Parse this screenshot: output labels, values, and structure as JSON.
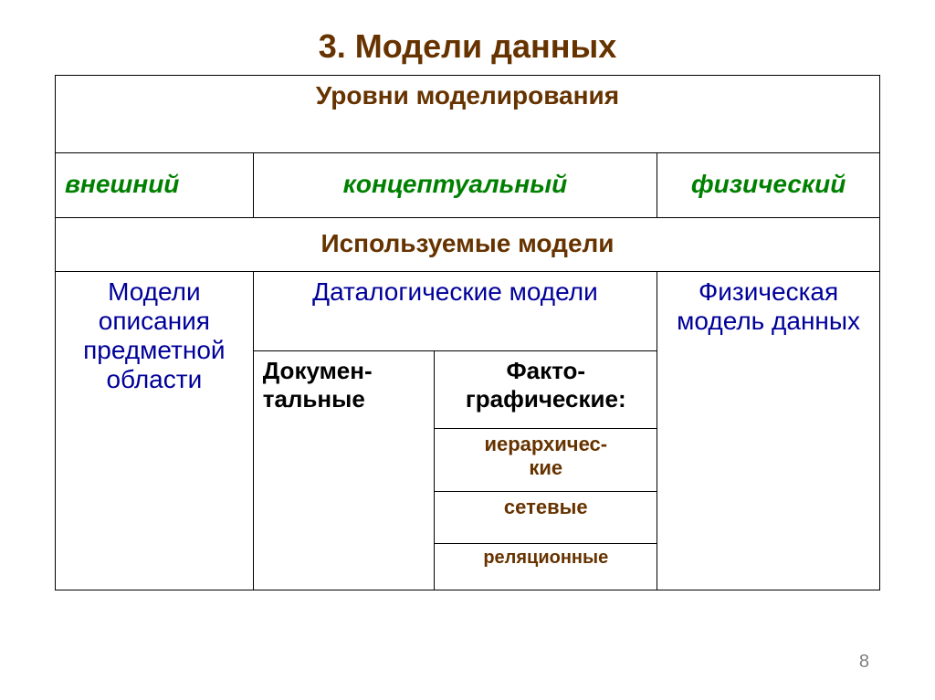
{
  "title": {
    "text": "3. Модели данных",
    "color": "#663300",
    "fontsize": 36
  },
  "table": {
    "header1": {
      "text": "Уровни моделирования",
      "color": "#663300",
      "fontsize": 28
    },
    "levels": {
      "col1": {
        "text": "внешний",
        "color": "#008000",
        "fontsize": 28
      },
      "col2": {
        "text": "концептуальный",
        "color": "#008000",
        "fontsize": 28
      },
      "col3": {
        "text": "физический",
        "color": "#008000",
        "fontsize": 28
      }
    },
    "header2": {
      "text": "Используемые модели",
      "color": "#663300",
      "fontsize": 28
    },
    "models": {
      "left": {
        "text": "Модели описания предметной области",
        "color": "#000099",
        "fontsize": 28
      },
      "midTop": {
        "text": "Даталогические модели",
        "color": "#000099",
        "fontsize": 28
      },
      "right": {
        "text": "Физическая модель данных",
        "color": "#000099",
        "fontsize": 28
      },
      "doc": {
        "text": "Докумен-тальные",
        "color": "#000000",
        "fontsize": 26
      },
      "fact": {
        "text": "Факто-графические:",
        "color": "#000000",
        "fontsize": 26
      },
      "hier": {
        "text": "иерархичес-кие",
        "color": "#663300",
        "fontsize": 22
      },
      "net": {
        "text": "сетевые",
        "color": "#663300",
        "fontsize": 22
      },
      "rel": {
        "text": "реляционные",
        "color": "#663300",
        "fontsize": 20
      }
    }
  },
  "pagenum": {
    "text": "8",
    "color": "#808080",
    "fontsize": 20
  },
  "border_color": "#000000",
  "background": "#ffffff"
}
